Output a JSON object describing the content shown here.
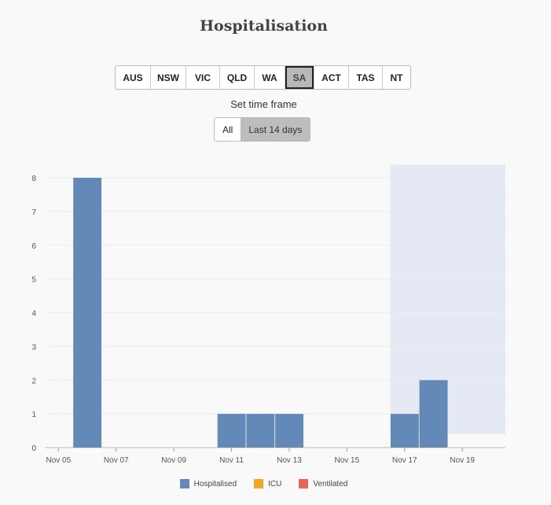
{
  "title": "Hospitalisation",
  "regions": [
    {
      "label": "AUS",
      "active": false
    },
    {
      "label": "NSW",
      "active": false
    },
    {
      "label": "VIC",
      "active": false
    },
    {
      "label": "QLD",
      "active": false
    },
    {
      "label": "WA",
      "active": false
    },
    {
      "label": "SA",
      "active": true
    },
    {
      "label": "ACT",
      "active": false
    },
    {
      "label": "TAS",
      "active": false
    },
    {
      "label": "NT",
      "active": false
    }
  ],
  "timeframe": {
    "label": "Set time frame",
    "options": [
      {
        "label": "All",
        "active": false
      },
      {
        "label": "Last 14 days",
        "active": true
      }
    ]
  },
  "chart_data": {
    "type": "bar",
    "x": [
      "Nov 05",
      "Nov 06",
      "Nov 07",
      "Nov 08",
      "Nov 09",
      "Nov 10",
      "Nov 11",
      "Nov 12",
      "Nov 13",
      "Nov 14",
      "Nov 15",
      "Nov 16",
      "Nov 17",
      "Nov 18",
      "Nov 19"
    ],
    "x_tick_labels": [
      "Nov 05",
      "Nov 07",
      "Nov 09",
      "Nov 11",
      "Nov 13",
      "Nov 15",
      "Nov 17",
      "Nov 19"
    ],
    "series": [
      {
        "name": "Hospitalised",
        "color": "#6389b8",
        "values": [
          0,
          8,
          0,
          0,
          0,
          0,
          1,
          1,
          1,
          0,
          0,
          0,
          1,
          2,
          0
        ]
      },
      {
        "name": "ICU",
        "color": "#f5a623",
        "values": [
          0,
          0,
          0,
          0,
          0,
          0,
          0,
          0,
          0,
          0,
          0,
          0,
          0,
          0,
          0
        ]
      },
      {
        "name": "Ventilated",
        "color": "#e8645a",
        "values": [
          0,
          0,
          0,
          0,
          0,
          0,
          0,
          0,
          0,
          0,
          0,
          0,
          0,
          0,
          0
        ]
      }
    ],
    "ylim": [
      0,
      8
    ],
    "y_ticks": [
      0,
      1,
      2,
      3,
      4,
      5,
      6,
      7,
      8
    ],
    "highlight_range": [
      "Nov 17",
      "Nov 19"
    ],
    "highlight_color": "#e4e9f3",
    "grid": true,
    "legend_position": "bottom"
  }
}
